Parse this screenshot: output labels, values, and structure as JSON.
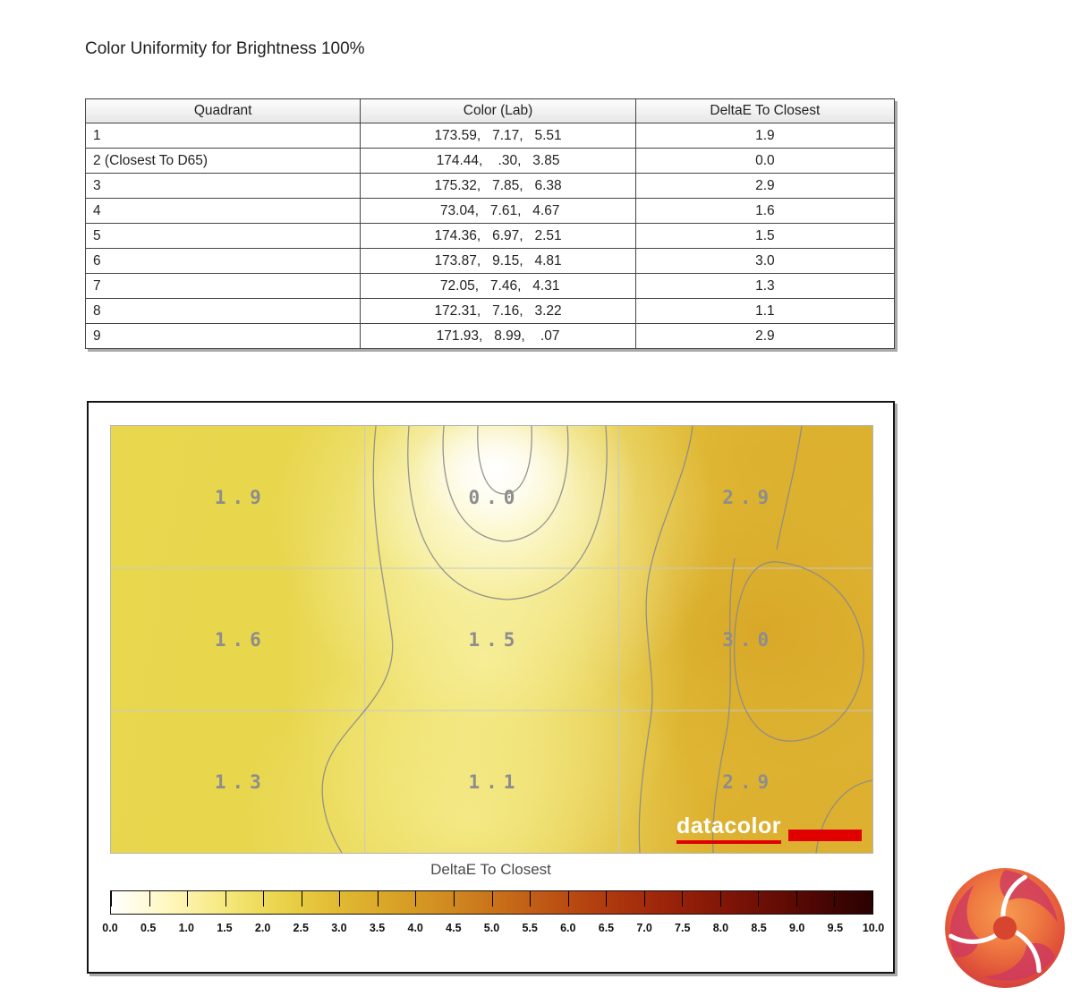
{
  "page": {
    "title": "Color Uniformity for Brightness 100%"
  },
  "table": {
    "columns": [
      "Quadrant",
      "Color (Lab)",
      "DeltaE To Closest"
    ],
    "rows": [
      {
        "quadrant": "1",
        "lab": "173.59,   7.17,   5.51",
        "delta_e": "1.9"
      },
      {
        "quadrant": "2 (Closest To D65)",
        "lab": "174.44,    .30,   3.85",
        "delta_e": "0.0"
      },
      {
        "quadrant": "3",
        "lab": "175.32,   7.85,   6.38",
        "delta_e": "2.9"
      },
      {
        "quadrant": "4",
        "lab": " 73.04,   7.61,   4.67",
        "delta_e": "1.6"
      },
      {
        "quadrant": "5",
        "lab": "174.36,   6.97,   2.51",
        "delta_e": "1.5"
      },
      {
        "quadrant": "6",
        "lab": "173.87,   9.15,   4.81",
        "delta_e": "3.0"
      },
      {
        "quadrant": "7",
        "lab": " 72.05,   7.46,   4.31",
        "delta_e": "1.3"
      },
      {
        "quadrant": "8",
        "lab": "172.31,   7.16,   3.22",
        "delta_e": "1.1"
      },
      {
        "quadrant": "9",
        "lab": "171.93,   8.99,    .07",
        "delta_e": "2.9"
      }
    ]
  },
  "chart_data": {
    "type": "heatmap",
    "title": "Color Uniformity for Brightness 100%",
    "colorbar_label": "DeltaE To Closest",
    "grid_rows": 3,
    "grid_cols": 3,
    "grid_labels": [
      "1.9",
      "0.0",
      "2.9",
      "1.6",
      "1.5",
      "3.0",
      "1.3",
      "1.1",
      "2.9"
    ],
    "grid_values": [
      [
        1.9,
        0.0,
        2.9
      ],
      [
        1.6,
        1.5,
        3.0
      ],
      [
        1.3,
        1.1,
        2.9
      ]
    ],
    "scale_ticks": [
      "0.0",
      "0.5",
      "1.0",
      "1.5",
      "2.0",
      "2.5",
      "3.0",
      "3.5",
      "4.0",
      "4.5",
      "5.0",
      "5.5",
      "6.0",
      "6.5",
      "7.0",
      "7.5",
      "8.0",
      "8.5",
      "9.0",
      "9.5",
      "10.0"
    ],
    "scale_range": [
      0,
      10
    ],
    "legend_position": "bottom",
    "watermark": "datacolor",
    "colors": {
      "scale_low": "#ffffff",
      "scale_mid": "#cd801d",
      "scale_high": "#2a0201",
      "watermark_red": "#e00000",
      "field_yellow": "#e7d44a",
      "field_amber": "#ddb232"
    }
  }
}
